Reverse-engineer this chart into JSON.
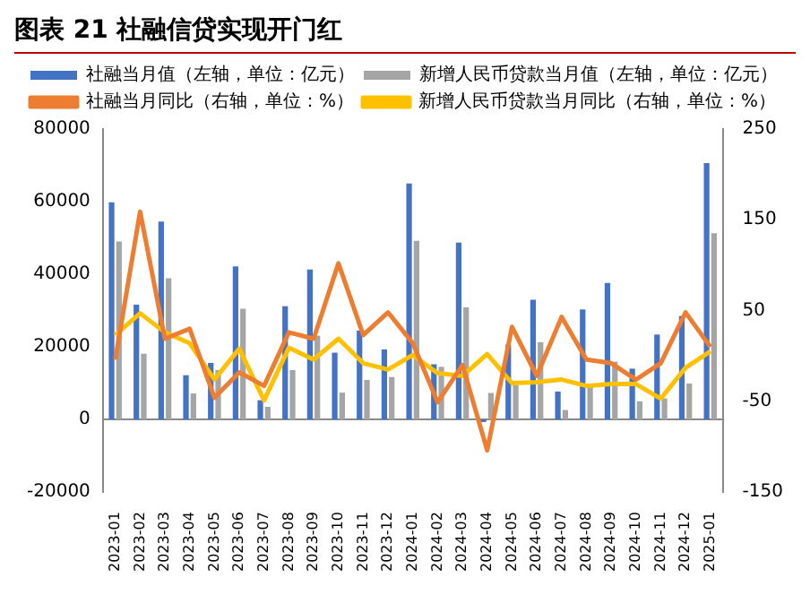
{
  "chart_data": {
    "type": "bar",
    "title": "图表 21 社融信贷实现开门红",
    "categories": [
      "2023-01",
      "2023-02",
      "2023-03",
      "2023-04",
      "2023-05",
      "2023-06",
      "2023-07",
      "2023-08",
      "2023-09",
      "2023-10",
      "2023-11",
      "2023-12",
      "2024-01",
      "2024-02",
      "2024-03",
      "2024-04",
      "2024-05",
      "2024-06",
      "2024-07",
      "2024-08",
      "2024-09",
      "2024-10",
      "2024-11",
      "2024-12",
      "2025-01"
    ],
    "series": [
      {
        "name": "社融当月值（左轴，单位：亿元）",
        "color": "#4472c4",
        "values": [
          59800,
          31600,
          54500,
          12200,
          15600,
          42200,
          5300,
          31200,
          41300,
          18400,
          24500,
          19300,
          65000,
          15200,
          48700,
          -700,
          20600,
          33000,
          7700,
          30300,
          37600,
          14000,
          23400,
          28500,
          70600
        ]
      },
      {
        "name": "新增人民币贷款当月值（左轴，单位：亿元）",
        "color": "#a5a5a5",
        "values": [
          49000,
          18100,
          38900,
          7200,
          13600,
          30500,
          3500,
          13600,
          23100,
          7400,
          10900,
          11700,
          49200,
          14500,
          30900,
          7300,
          9500,
          21300,
          2600,
          9000,
          15900,
          5000,
          5800,
          9900,
          51300
        ]
      },
      {
        "name": "社融当月同比（右轴，单位：%）",
        "type": "line",
        "axis": "y2",
        "color": "#ed7d31",
        "values": [
          -4,
          159,
          19,
          30,
          -46,
          -18,
          -33,
          26,
          19,
          102,
          23,
          48,
          14,
          -51,
          -10,
          -104,
          32,
          -22,
          43,
          -4,
          -8,
          -26,
          -8,
          48,
          10
        ]
      },
      {
        "name": "新增人民币贷款当月同比（右轴，单位：%）",
        "type": "line",
        "axis": "y2",
        "color": "#ffc000",
        "values": [
          23,
          47,
          26,
          14,
          -26,
          8,
          -49,
          9,
          -4,
          19,
          -8,
          -15,
          1,
          -19,
          -22,
          2,
          -30,
          -29,
          -26,
          -33,
          -31,
          -31,
          -47,
          -13,
          5
        ]
      }
    ],
    "ylim": [
      -20000,
      80000
    ],
    "yticks": [
      -20000,
      0,
      20000,
      40000,
      60000,
      80000
    ],
    "y2lim": [
      -150,
      250
    ],
    "y2ticks": [
      -150,
      -50,
      50,
      150,
      250
    ],
    "legend": "top",
    "marker": "none",
    "line_style": "solid"
  }
}
